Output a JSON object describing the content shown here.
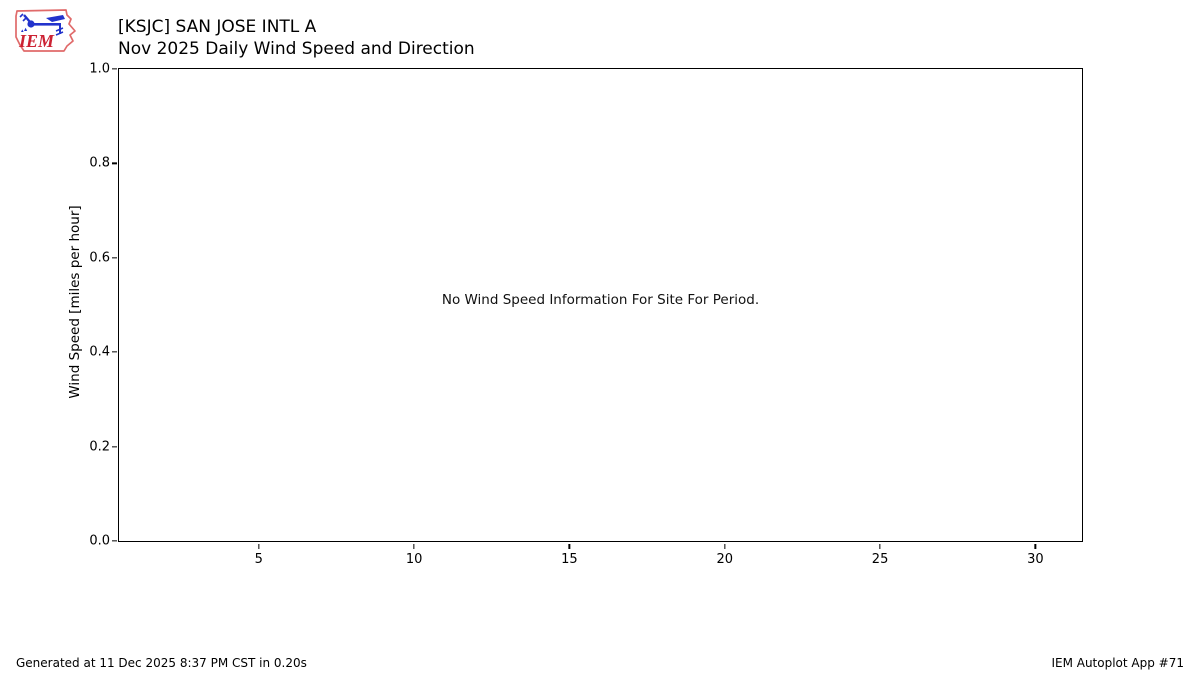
{
  "logo": {
    "text": "IEM"
  },
  "header": {
    "title_line1": "[KSJC] SAN JOSE INTL A",
    "title_line2": "Nov 2025 Daily Wind Speed and Direction"
  },
  "chart_data": {
    "type": "line",
    "title": "[KSJC] SAN JOSE INTL A — Nov 2025 Daily Wind Speed and Direction",
    "xlabel": "",
    "ylabel": "Wind Speed [miles per hour]",
    "xlim": [
      0.5,
      31.5
    ],
    "ylim": [
      0.0,
      1.0
    ],
    "x_ticks": [
      "5",
      "10",
      "15",
      "20",
      "25",
      "30"
    ],
    "y_ticks": [
      "0.0",
      "0.2",
      "0.4",
      "0.6",
      "0.8",
      "1.0"
    ],
    "series": [],
    "annotation": "No Wind Speed Information For Site For Period.",
    "grid": false,
    "legend": "none"
  },
  "footer": {
    "generated": "Generated at 11 Dec 2025 8:37 PM CST in 0.20s",
    "app_credit": "IEM Autoplot App #71"
  },
  "colors": {
    "background": "#ffffff",
    "axis": "#000000",
    "text": "#000000",
    "logo_outline": "#e06a6a",
    "logo_blue": "#2233cc",
    "logo_red": "#cc2233"
  }
}
